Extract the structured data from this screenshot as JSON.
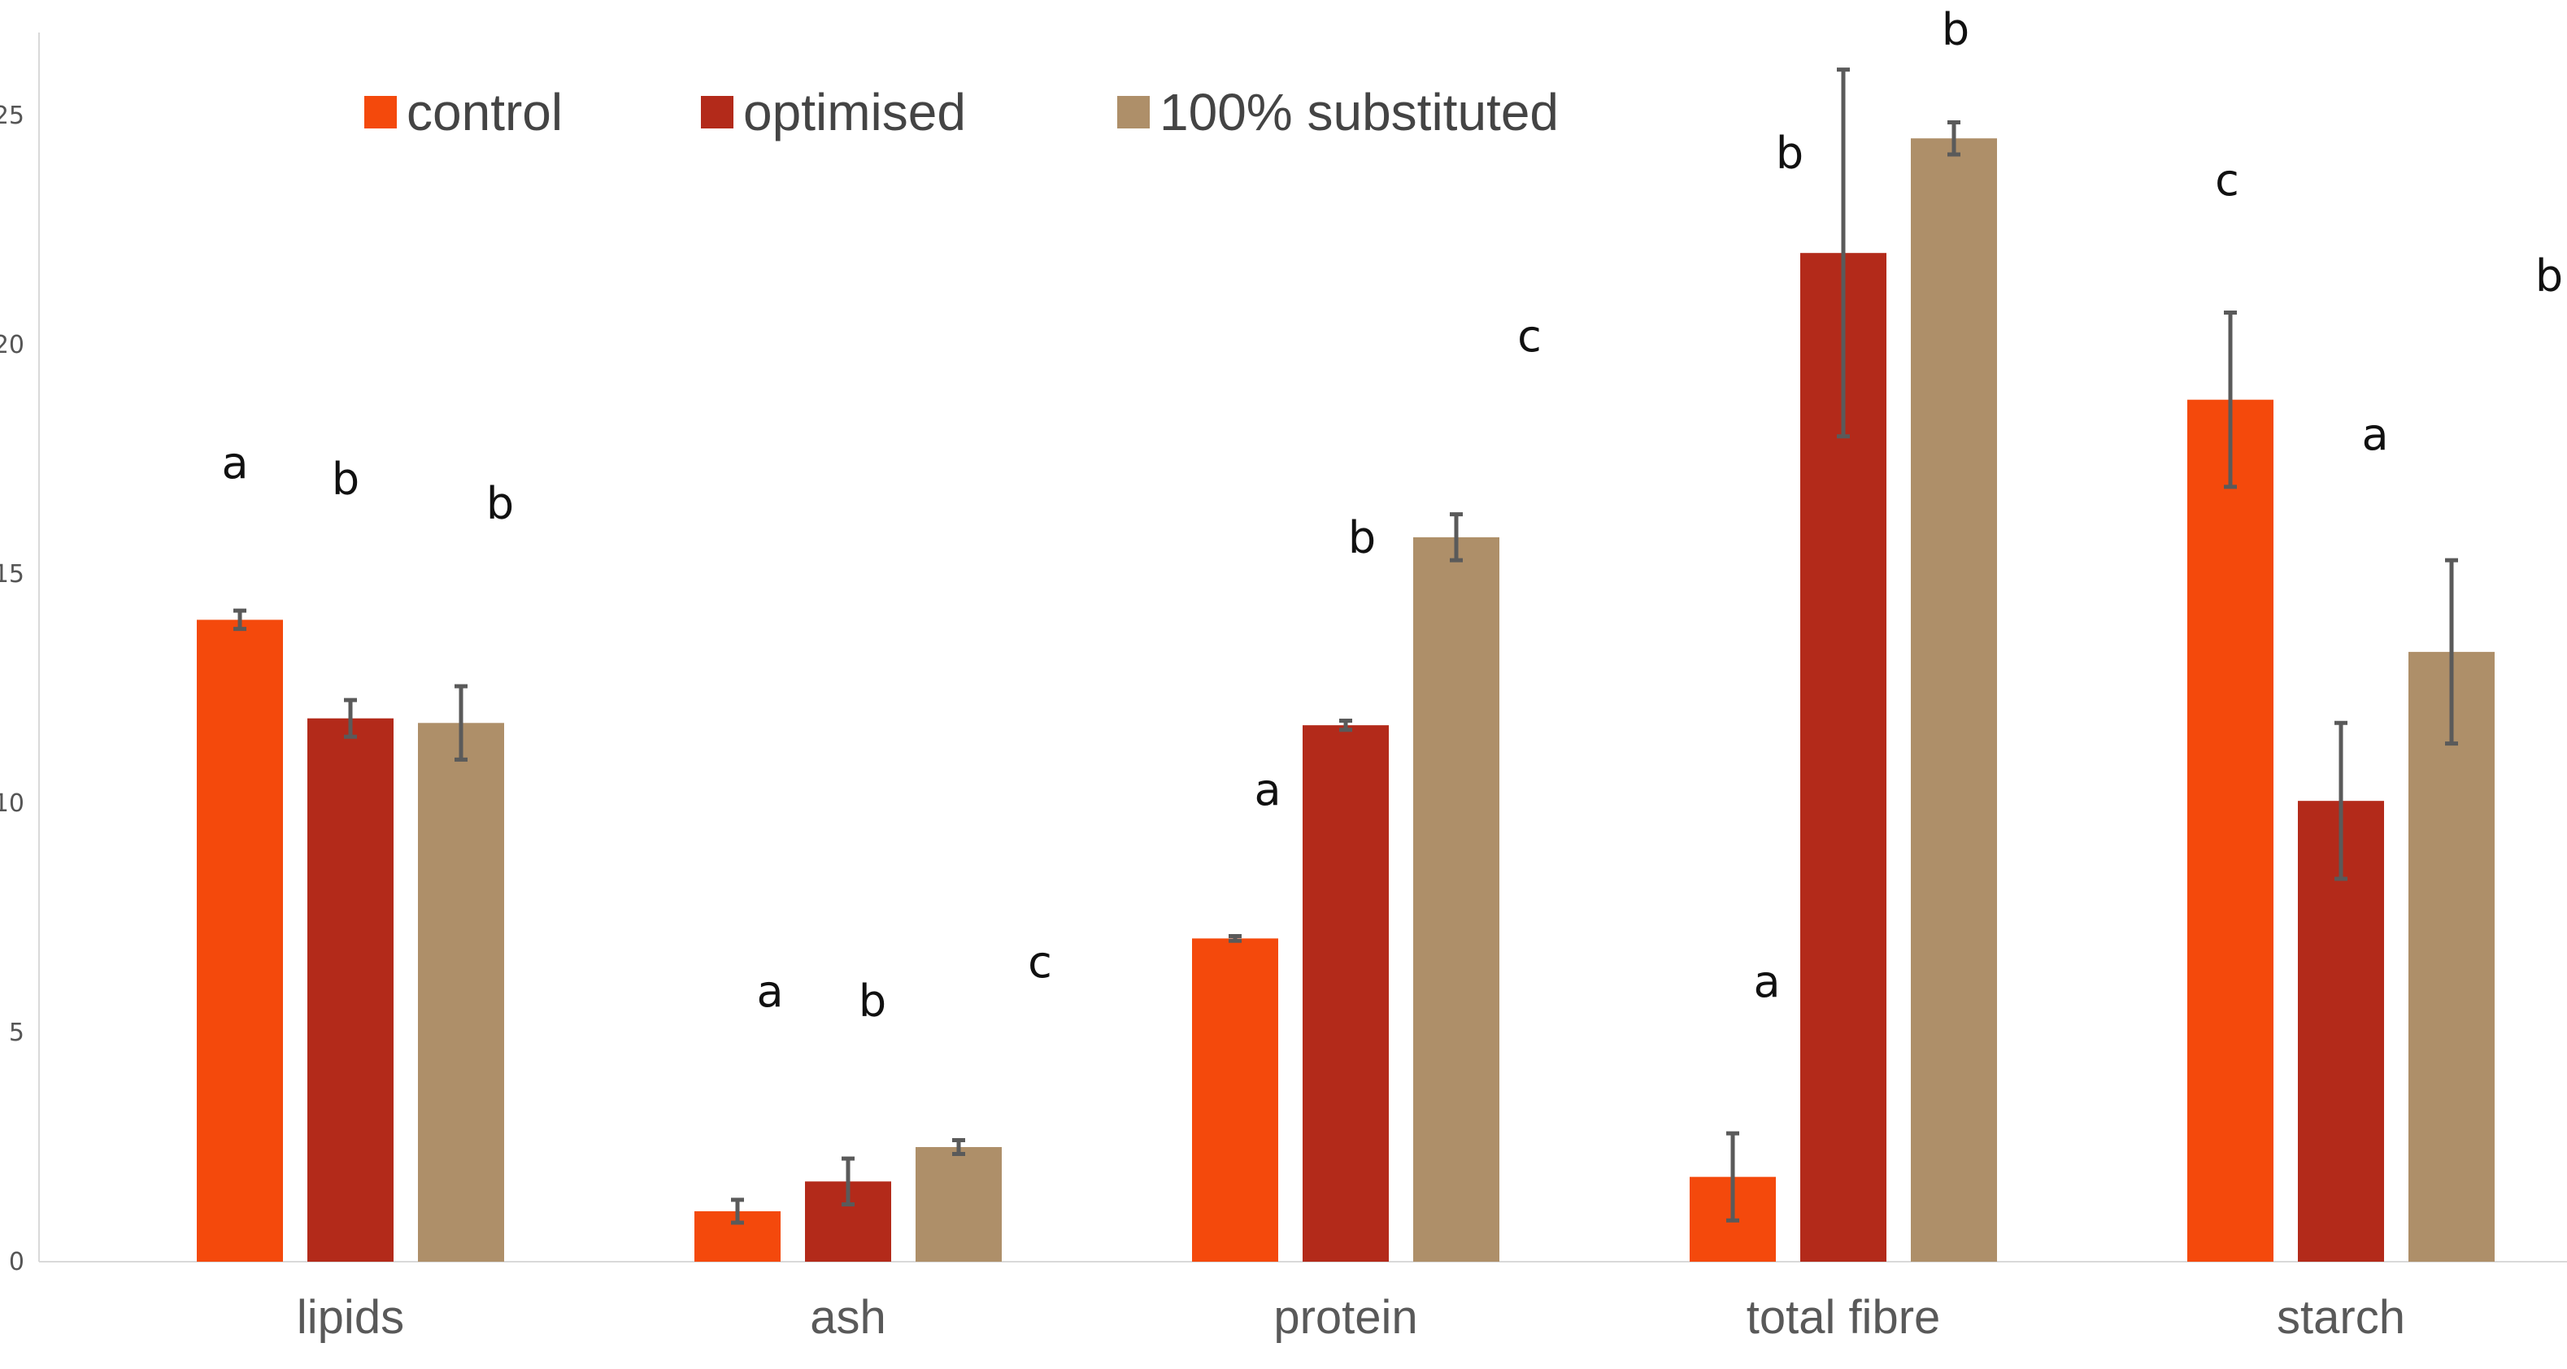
{
  "chart_data": {
    "type": "bar",
    "title": "",
    "xlabel": "",
    "ylabel": "",
    "ylim": [
      0,
      26
    ],
    "yticks": [
      0,
      5,
      10,
      15,
      20,
      25
    ],
    "grid": false,
    "legend_position": "top",
    "categories": [
      "lipids",
      "ash",
      "protein",
      "total fibre",
      "starch"
    ],
    "series": [
      {
        "name": "control",
        "color": "#F4490C",
        "values": [
          14.0,
          1.1,
          7.05,
          1.85,
          18.8
        ],
        "errors": [
          0.2,
          0.25,
          0.05,
          0.95,
          1.9
        ],
        "letters": [
          "a",
          "a",
          "a",
          "a",
          "c"
        ]
      },
      {
        "name": "optimised",
        "color": "#B32A1A",
        "values": [
          11.85,
          1.75,
          11.7,
          22.0,
          10.05
        ],
        "errors": [
          0.4,
          0.5,
          0.1,
          4.0,
          1.7
        ],
        "letters": [
          "b",
          "b",
          "b",
          "b",
          "a"
        ]
      },
      {
        "name": "100% substituted",
        "color": "#AE8F69",
        "values": [
          11.75,
          2.5,
          15.8,
          24.5,
          13.3
        ],
        "errors": [
          0.8,
          0.15,
          0.5,
          0.35,
          2.0
        ],
        "letters": [
          "b",
          "c",
          "c",
          "b",
          "b"
        ]
      }
    ]
  }
}
